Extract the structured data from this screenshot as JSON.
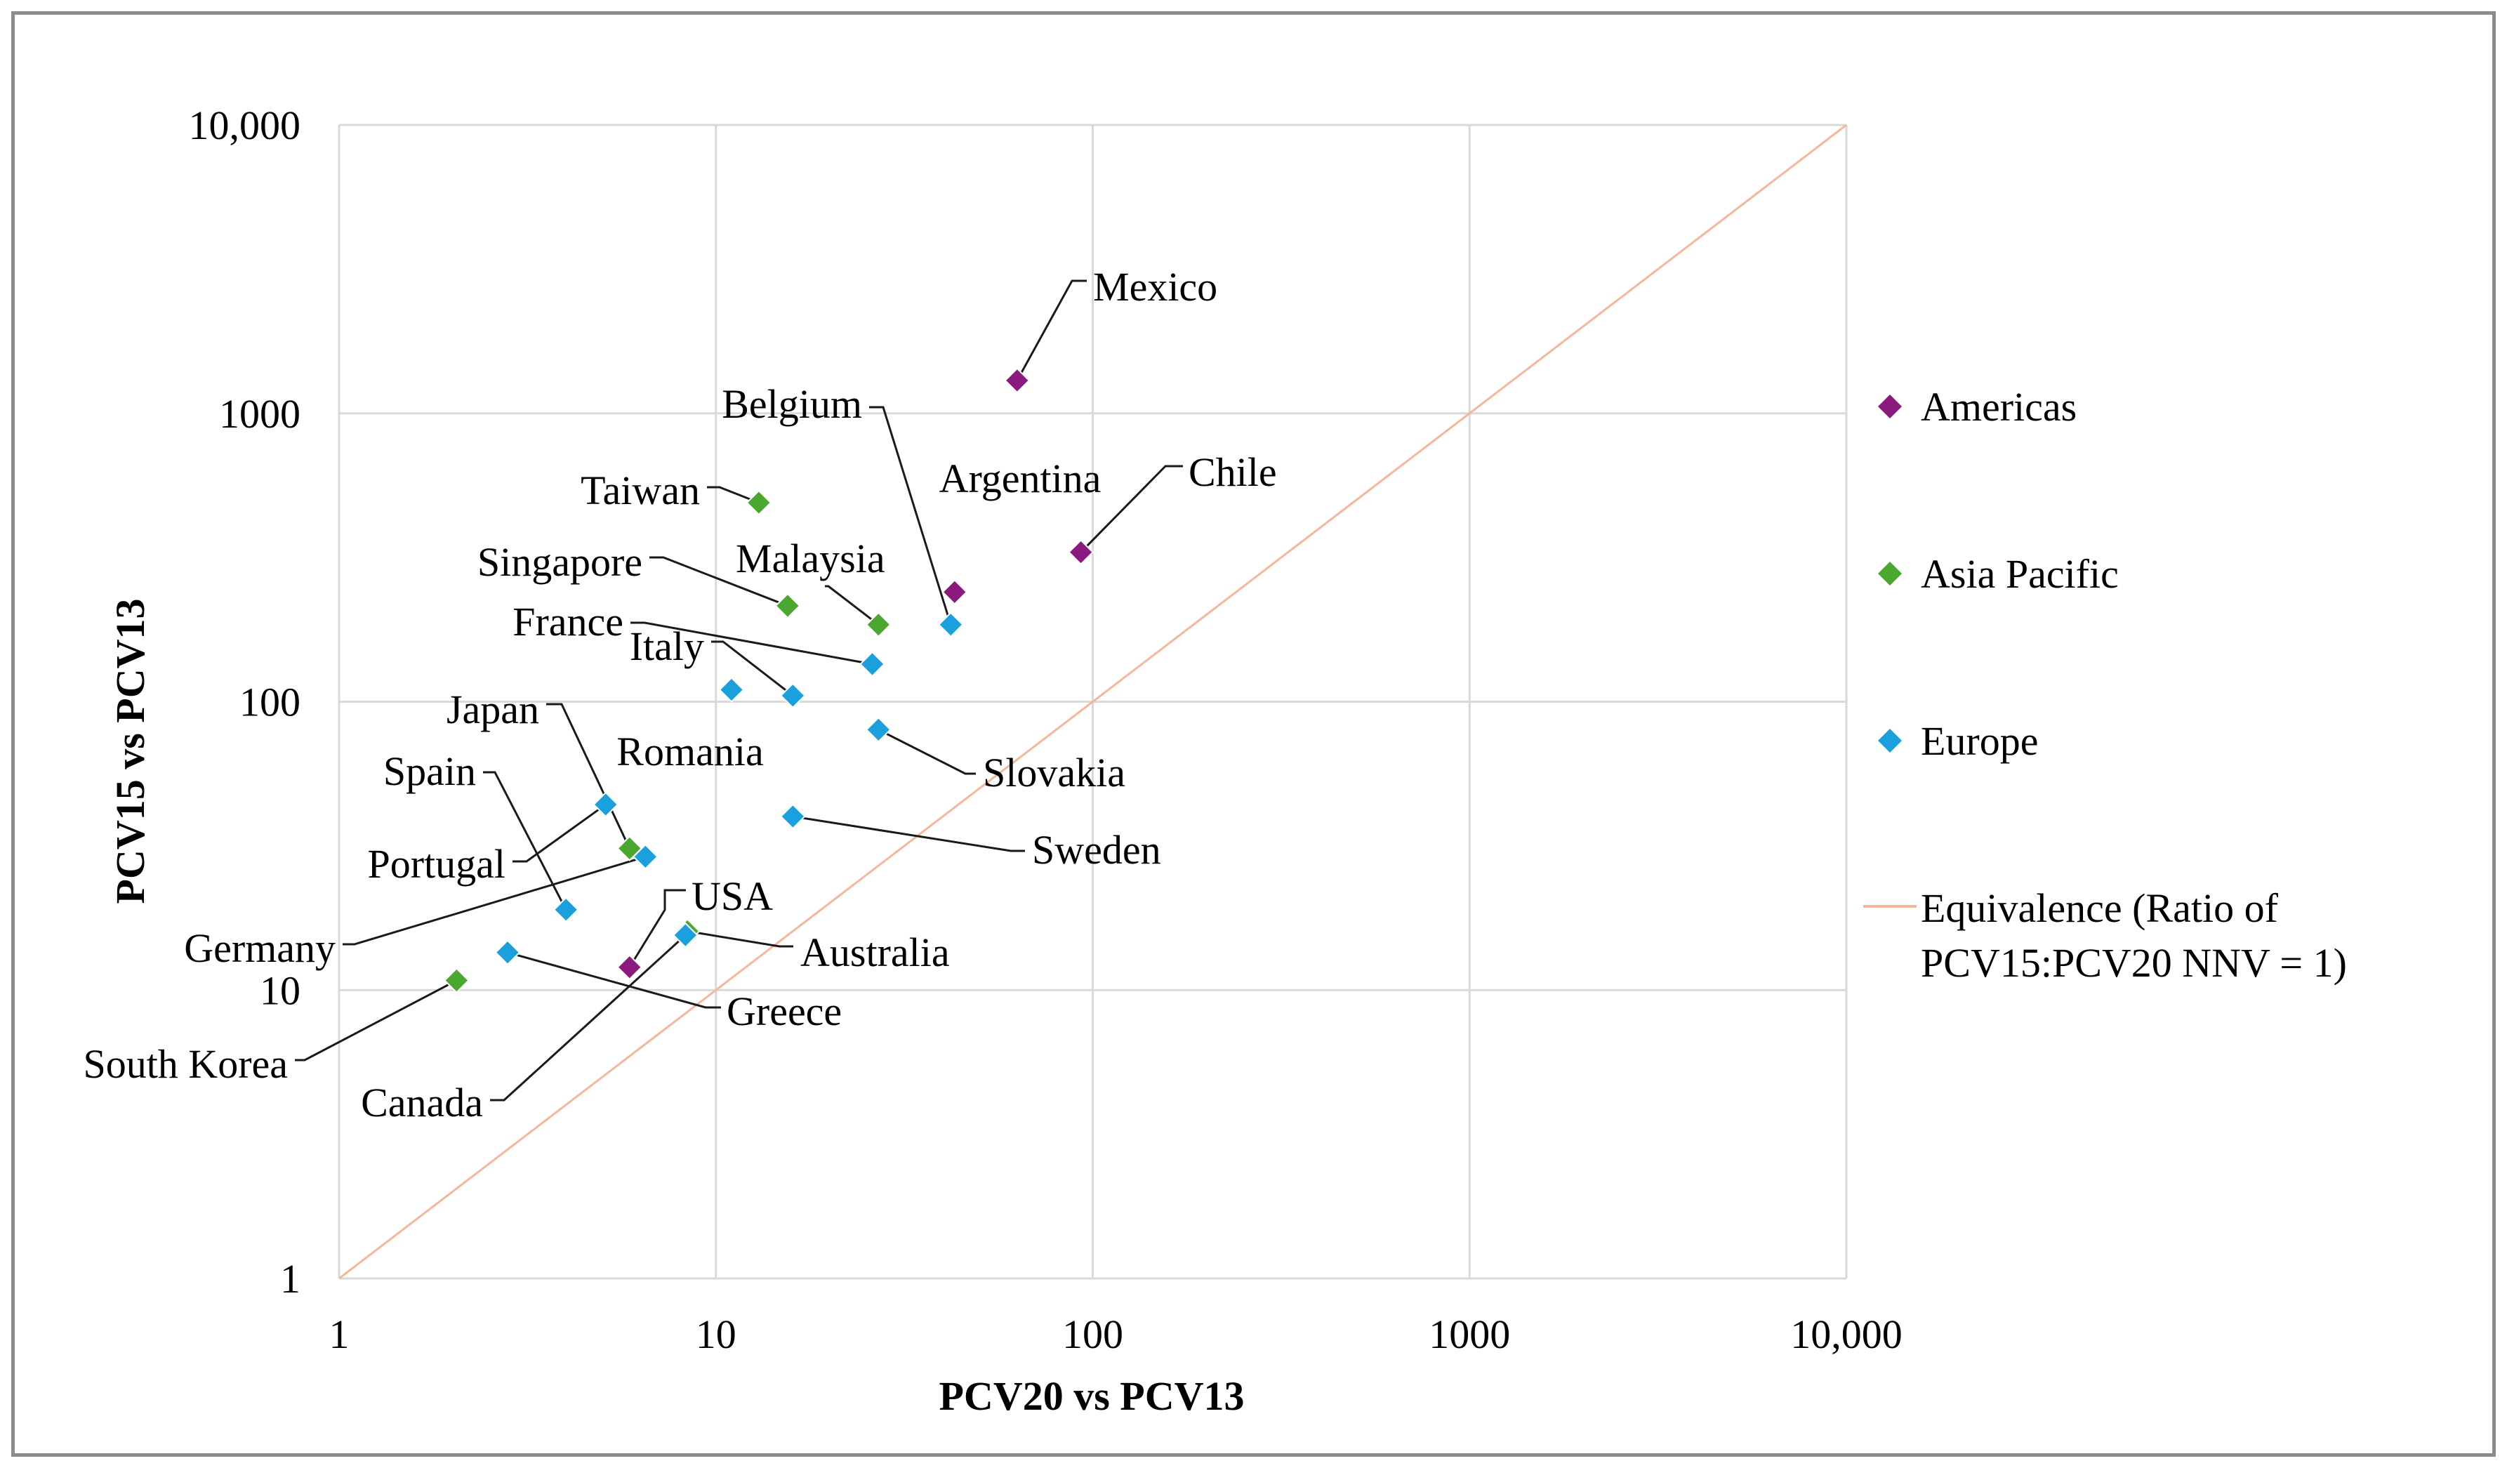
{
  "chart_data": {
    "type": "scatter",
    "xlabel": "PCV20 vs PCV13",
    "ylabel": "PCV15 vs PCV13",
    "xscale": "log",
    "yscale": "log",
    "xlim": [
      1,
      10000
    ],
    "ylim": [
      1,
      10000
    ],
    "x_ticks": [
      "1",
      "10",
      "100",
      "1000",
      "10,000"
    ],
    "y_ticks": [
      "1",
      "10",
      "100",
      "1000",
      "10,000"
    ],
    "grid": true,
    "legend_position": "right",
    "legend": [
      {
        "name": "Americas",
        "color": "#8b1a7e",
        "marker": "diamond"
      },
      {
        "name": "Asia Pacific",
        "color": "#4aa82e",
        "marker": "diamond"
      },
      {
        "name": "Europe",
        "color": "#1aa0dc",
        "marker": "diamond"
      },
      {
        "name": "Equivalence (Ratio of PCV15:PCV20 NNV = 1)",
        "color": "#f5b79a",
        "marker": "line"
      }
    ],
    "series": [
      {
        "name": "Americas",
        "color": "#8b1a7e",
        "points": [
          {
            "label": "Mexico",
            "x": 63,
            "y": 1300
          },
          {
            "label": "Chile",
            "x": 93,
            "y": 330
          },
          {
            "label": "Argentina",
            "x": 43,
            "y": 240
          },
          {
            "label": "USA",
            "x": 5.9,
            "y": 12
          }
        ]
      },
      {
        "name": "Asia Pacific",
        "color": "#4aa82e",
        "points": [
          {
            "label": "Taiwan",
            "x": 13,
            "y": 490
          },
          {
            "label": "Singapore",
            "x": 15.5,
            "y": 215
          },
          {
            "label": "Malaysia",
            "x": 27,
            "y": 185
          },
          {
            "label": "Japan",
            "x": 5.9,
            "y": 31
          },
          {
            "label": "Australia",
            "x": 8.4,
            "y": 16
          },
          {
            "label": "South Korea",
            "x": 2.05,
            "y": 10.8
          }
        ]
      },
      {
        "name": "Europe",
        "color": "#1aa0dc",
        "points": [
          {
            "label": "Belgium",
            "x": 42,
            "y": 185
          },
          {
            "label": "France",
            "x": 26,
            "y": 135
          },
          {
            "label": "Italy",
            "x": 16,
            "y": 105
          },
          {
            "label": "Romania",
            "x": 11,
            "y": 110
          },
          {
            "label": "Slovakia",
            "x": 27,
            "y": 80
          },
          {
            "label": "Sweden",
            "x": 16,
            "y": 40
          },
          {
            "label": "Portugal",
            "x": 5.1,
            "y": 44
          },
          {
            "label": "Germany",
            "x": 6.5,
            "y": 29
          },
          {
            "label": "Spain",
            "x": 4.0,
            "y": 19
          },
          {
            "label": "Greece",
            "x": 2.8,
            "y": 13.5
          },
          {
            "label": "Canada",
            "x": 8.3,
            "y": 15.5
          }
        ]
      }
    ],
    "reference_line": {
      "name": "Equivalence (Ratio of PCV15:PCV20 NNV = 1)",
      "from": [
        1,
        1
      ],
      "to": [
        10000,
        10000
      ],
      "color": "#f5b79a"
    }
  }
}
